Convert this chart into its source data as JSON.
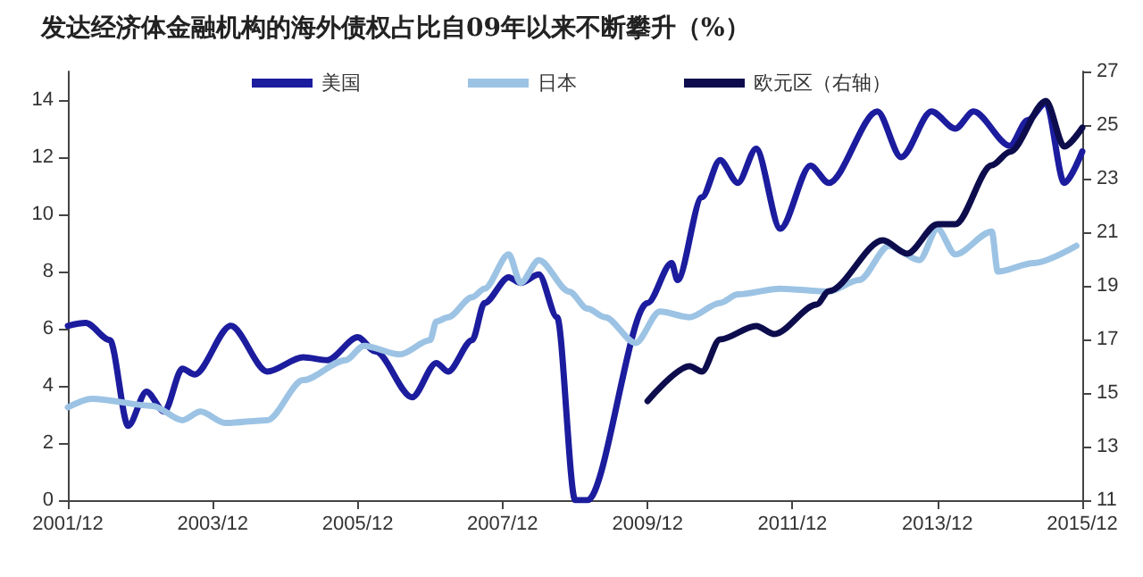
{
  "chart_data": {
    "type": "line",
    "title": "发达经济体金融机构的海外债权占比自09年以来不断攀升（%）",
    "xlim": [
      "2001-12",
      "2015-12"
    ],
    "xticks": [
      {
        "value": "2001-12",
        "label": "2001/12"
      },
      {
        "value": "2003-12",
        "label": "2003/12"
      },
      {
        "value": "2005-12",
        "label": "2005/12"
      },
      {
        "value": "2007-12",
        "label": "2007/12"
      },
      {
        "value": "2009-12",
        "label": "2009/12"
      },
      {
        "value": "2011-12",
        "label": "2011/12"
      },
      {
        "value": "2013-12",
        "label": "2013/12"
      },
      {
        "value": "2015-12",
        "label": "2015/12"
      }
    ],
    "ylim": [
      0,
      15
    ],
    "yticks": [
      0,
      2,
      4,
      6,
      8,
      10,
      12,
      14
    ],
    "y2lim": [
      11,
      27
    ],
    "y2ticks": [
      11,
      13,
      15,
      17,
      19,
      21,
      23,
      25,
      27
    ],
    "grid": false,
    "legend": "top",
    "marker": "none",
    "line_style": "solid",
    "series": [
      {
        "name": "美国",
        "color": "#1c1c9e",
        "x": [
          "2001-12",
          "2002-03",
          "2002-07",
          "2002-10",
          "2003-01",
          "2003-04",
          "2003-07",
          "2003-09",
          "2004-03",
          "2004-09",
          "2005-03",
          "2005-07",
          "2005-12",
          "2006-03",
          "2006-09",
          "2007-01",
          "2007-03",
          "2007-07",
          "2007-09",
          "2008-01",
          "2008-03",
          "2008-06",
          "2008-09",
          "2008-12",
          "2009-02",
          "2009-12",
          "2010-04",
          "2010-05",
          "2010-09",
          "2010-12",
          "2011-03",
          "2011-06",
          "2011-10",
          "2012-03",
          "2012-06",
          "2013-02",
          "2013-06",
          "2013-11",
          "2014-03",
          "2014-06",
          "2014-12",
          "2015-03",
          "2015-06",
          "2015-09",
          "2015-12"
        ],
        "values": [
          6.1,
          6.2,
          5.6,
          2.6,
          3.8,
          3.1,
          4.6,
          4.4,
          6.1,
          4.5,
          5.0,
          4.9,
          5.7,
          5.2,
          3.6,
          4.8,
          4.5,
          5.6,
          6.9,
          7.8,
          7.6,
          7.9,
          6.4,
          0,
          0,
          6.9,
          8.3,
          7.7,
          10.6,
          11.9,
          11.1,
          12.3,
          9.5,
          11.7,
          11.1,
          13.6,
          12.0,
          13.6,
          13.0,
          13.6,
          12.4,
          13.3,
          13.9,
          11.1,
          12.2
        ]
      },
      {
        "name": "日本",
        "color": "#9cc3e4",
        "x": [
          "2001-12",
          "2002-04",
          "2003-02",
          "2003-07",
          "2003-10",
          "2004-02",
          "2004-09",
          "2005-03",
          "2005-10",
          "2006-01",
          "2006-07",
          "2006-12",
          "2007-01",
          "2007-03",
          "2007-07",
          "2007-09",
          "2008-01",
          "2008-03",
          "2008-06",
          "2008-11",
          "2009-02",
          "2009-05",
          "2009-10",
          "2010-02",
          "2010-07",
          "2010-12",
          "2011-03",
          "2011-10",
          "2012-06",
          "2012-11",
          "2013-04",
          "2013-09",
          "2013-12",
          "2014-03",
          "2014-09",
          "2014-10",
          "2015-04",
          "2015-11"
        ],
        "values": [
          3.25,
          3.55,
          3.3,
          2.8,
          3.1,
          2.7,
          2.8,
          4.2,
          4.9,
          5.4,
          5.1,
          5.6,
          6.25,
          6.4,
          7.1,
          7.4,
          8.6,
          7.6,
          8.4,
          7.3,
          6.7,
          6.4,
          5.5,
          6.6,
          6.4,
          6.9,
          7.2,
          7.4,
          7.3,
          7.7,
          8.9,
          8.4,
          9.5,
          8.6,
          9.4,
          8.0,
          8.3,
          8.9
        ]
      },
      {
        "name": "欧元区（右轴）",
        "color": "#0d0d4d",
        "axis": "y2",
        "x": [
          "2009-12",
          "2010-07",
          "2010-09",
          "2010-12",
          "2011-06",
          "2011-09",
          "2012-04",
          "2012-06",
          "2013-03",
          "2013-07",
          "2013-12",
          "2014-03",
          "2014-09",
          "2014-12",
          "2015-06",
          "2015-09",
          "2015-12"
        ],
        "values": [
          14.7,
          16.0,
          15.8,
          17.0,
          17.5,
          17.2,
          18.3,
          18.8,
          20.7,
          20.2,
          21.3,
          21.3,
          23.5,
          24.0,
          25.9,
          24.2,
          24.9
        ]
      }
    ]
  }
}
